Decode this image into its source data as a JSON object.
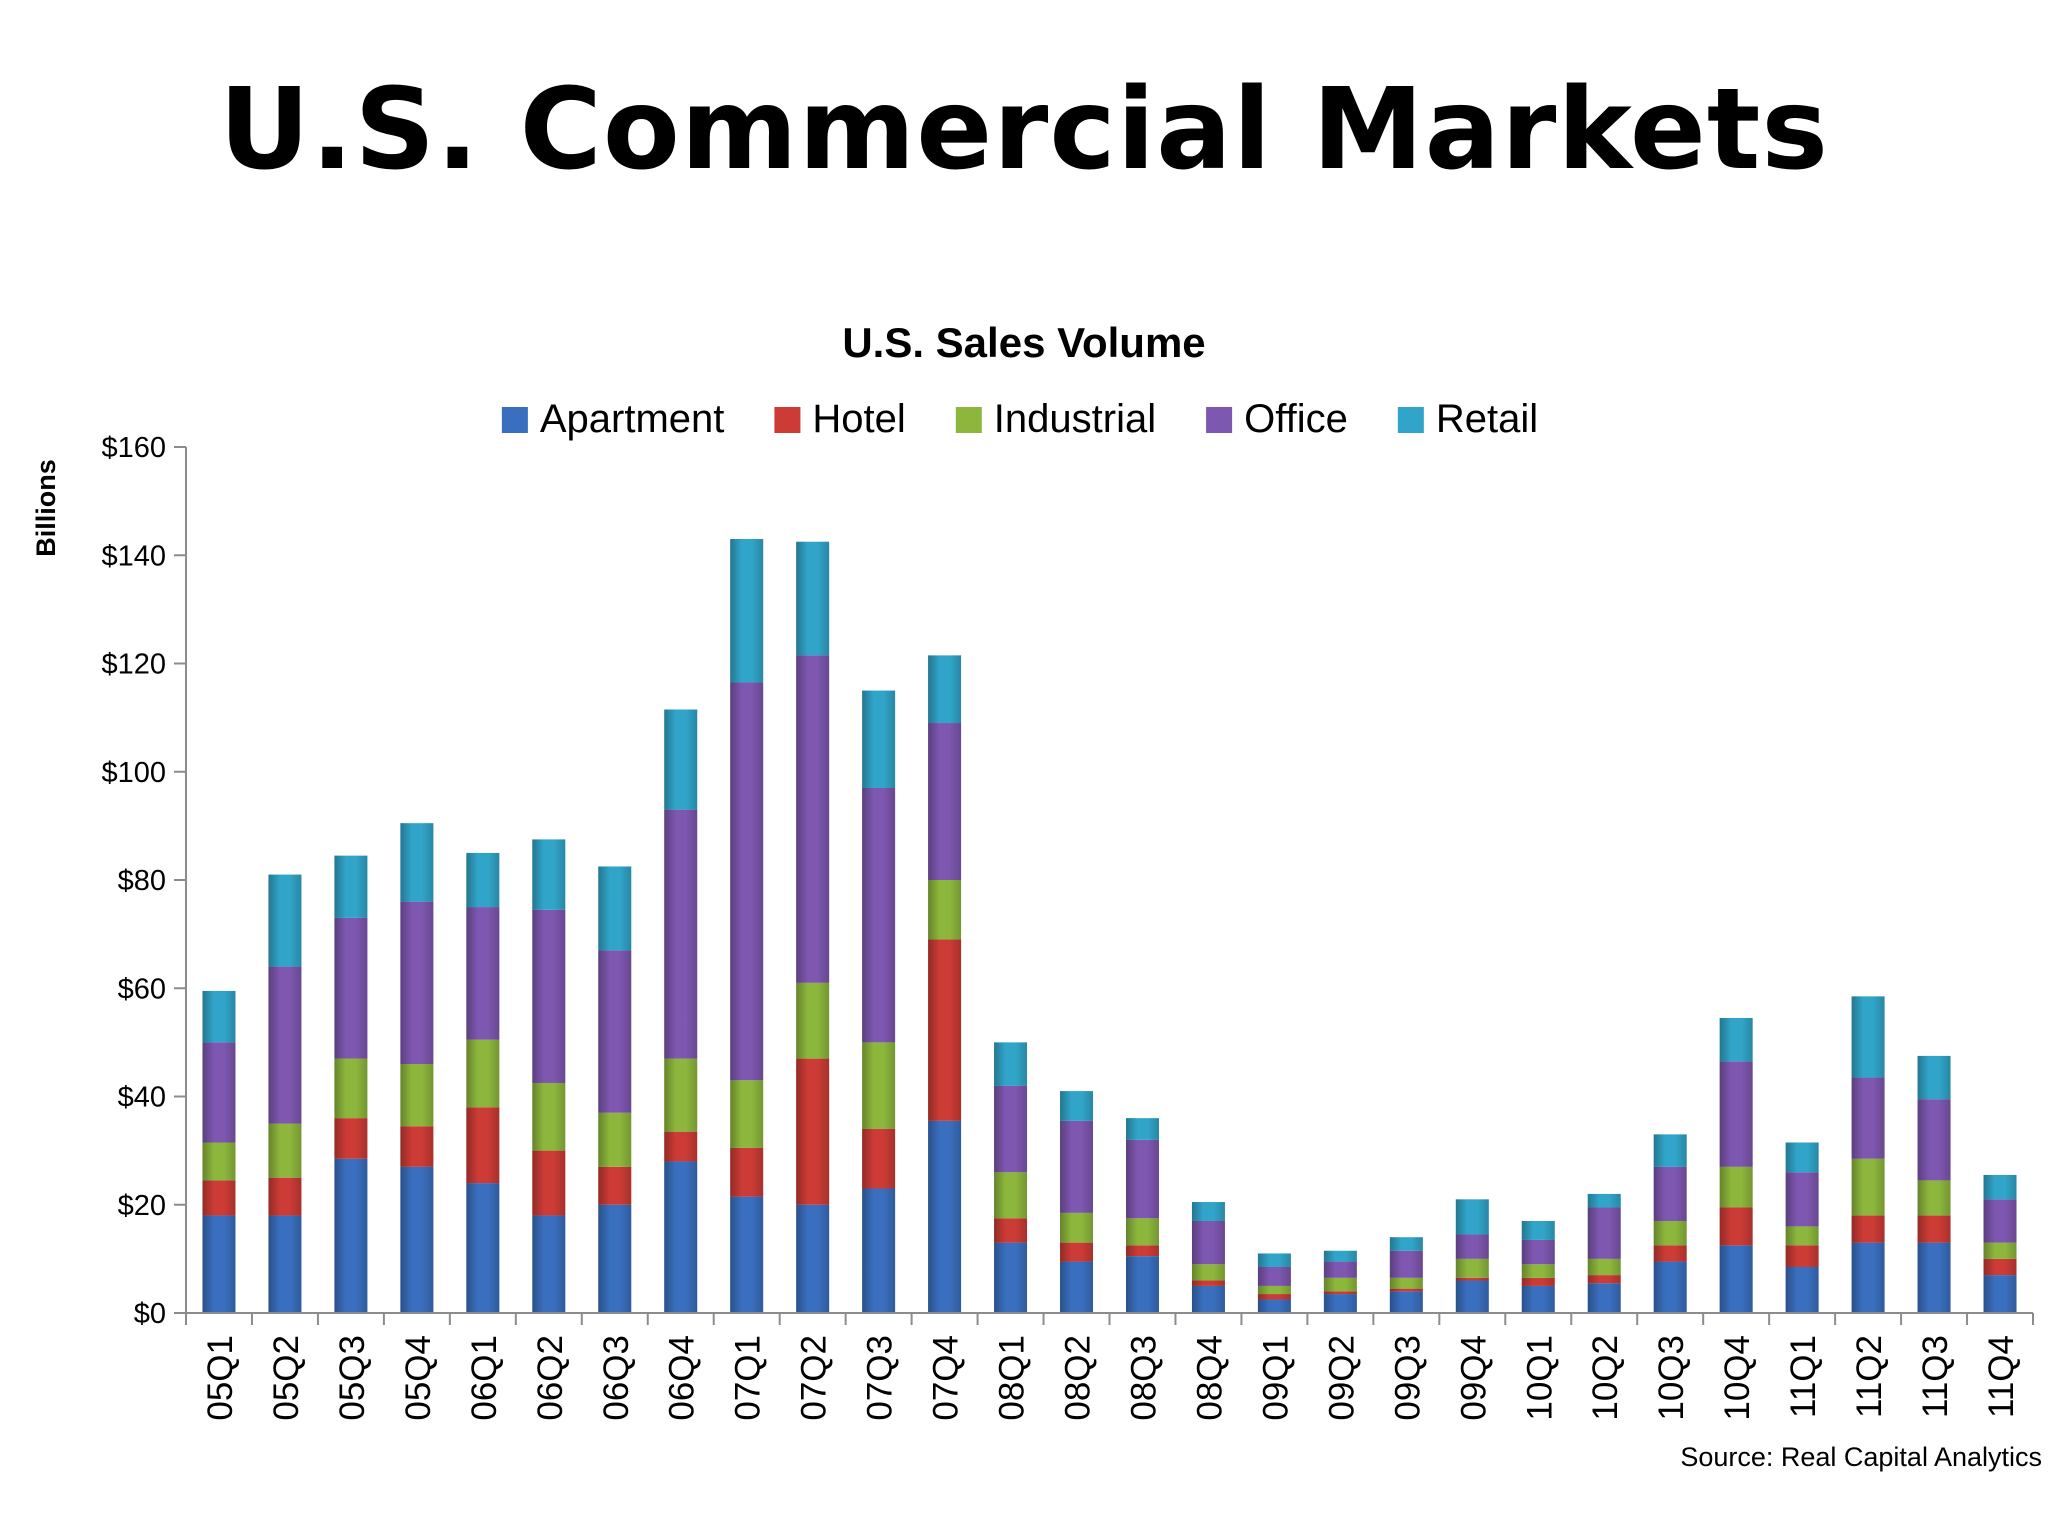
{
  "slide": {
    "title": "U.S. Commercial Markets",
    "source": "Source: Real Capital Analytics"
  },
  "chart_data": {
    "type": "bar",
    "stacked": true,
    "title": "U.S. Sales Volume",
    "xlabel": "",
    "ylabel": "Billions",
    "ylim": [
      0,
      160
    ],
    "yticks": [
      0,
      20,
      40,
      60,
      80,
      100,
      120,
      140,
      160
    ],
    "ytick_labels": [
      "$0",
      "$20",
      "$40",
      "$60",
      "$80",
      "$100",
      "$120",
      "$140",
      "$160"
    ],
    "grid": false,
    "legend_position": "top",
    "categories": [
      "05Q1",
      "05Q2",
      "05Q3",
      "05Q4",
      "06Q1",
      "06Q2",
      "06Q3",
      "06Q4",
      "07Q1",
      "07Q2",
      "07Q3",
      "07Q4",
      "08Q1",
      "08Q2",
      "08Q3",
      "08Q4",
      "09Q1",
      "09Q2",
      "09Q3",
      "09Q4",
      "10Q1",
      "10Q2",
      "10Q3",
      "10Q4",
      "11Q1",
      "11Q2",
      "11Q3",
      "11Q4"
    ],
    "series": [
      {
        "name": "Apartment",
        "color": "#3a6fbf",
        "values": [
          18,
          18,
          28.5,
          27,
          24,
          18,
          20,
          28,
          21.5,
          20,
          23,
          35.5,
          13,
          9.5,
          10.5,
          5,
          2.5,
          3.5,
          4,
          6,
          5,
          5.5,
          9.5,
          12.5,
          8.5,
          13,
          13,
          7
        ]
      },
      {
        "name": "Hotel",
        "color": "#cc3b35",
        "values": [
          6.5,
          7,
          7.5,
          7.5,
          14,
          12,
          7,
          5.5,
          9,
          27,
          11,
          33.5,
          4.5,
          3.5,
          2,
          1,
          1,
          0.5,
          0.5,
          0.5,
          1.5,
          1.5,
          3,
          7,
          4,
          5,
          5,
          3
        ]
      },
      {
        "name": "Industrial",
        "color": "#8db73c",
        "values": [
          7,
          10,
          11,
          11.5,
          12.5,
          12.5,
          10,
          13.5,
          12.5,
          14,
          16,
          11,
          8.5,
          5.5,
          5,
          3,
          1.5,
          2.5,
          2,
          3.5,
          2.5,
          3,
          4.5,
          7.5,
          3.5,
          10.5,
          6.5,
          3
        ]
      },
      {
        "name": "Office",
        "color": "#7e57b0",
        "values": [
          18.5,
          29,
          26,
          30,
          24.5,
          32,
          30,
          46,
          73.5,
          60.5,
          47,
          29,
          16,
          17,
          14.5,
          8,
          3.5,
          3,
          5,
          4.5,
          4.5,
          9.5,
          10,
          19.5,
          10,
          15,
          15,
          8
        ]
      },
      {
        "name": "Retail",
        "color": "#31a5c9",
        "values": [
          9.5,
          17,
          11.5,
          14.5,
          10,
          13,
          15.5,
          18.5,
          26.5,
          21,
          18,
          12.5,
          8,
          5.5,
          4,
          3.5,
          2.5,
          2,
          2.5,
          6.5,
          3.5,
          2.5,
          6,
          8,
          5.5,
          15,
          8,
          4.5
        ]
      }
    ]
  }
}
